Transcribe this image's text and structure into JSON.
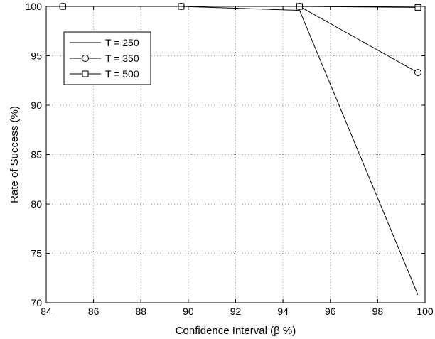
{
  "chart_data": {
    "type": "line",
    "xlabel": "Confidence Interval (β %)",
    "ylabel": "Rate of Success (%)",
    "xlim": [
      84,
      100
    ],
    "ylim": [
      70,
      100
    ],
    "xticks": [
      84,
      86,
      88,
      90,
      92,
      94,
      96,
      98,
      100
    ],
    "yticks": [
      70,
      75,
      80,
      85,
      90,
      95,
      100
    ],
    "x_tick_labels": [
      "84",
      "86",
      "88",
      "90",
      "92",
      "94",
      "96",
      "98",
      "100"
    ],
    "y_tick_labels": [
      "70",
      "75",
      "80",
      "85",
      "90",
      "95",
      "100"
    ],
    "grid": true,
    "grid_style": "dotted",
    "legend_position": "upper-left",
    "series": [
      {
        "name": "T = 250",
        "marker": "none",
        "x": [
          84.7,
          89.7,
          94.7,
          99.7
        ],
        "values": [
          100,
          100,
          99.6,
          70.8
        ]
      },
      {
        "name": "T = 350",
        "marker": "circle",
        "x": [
          84.7,
          89.7,
          94.7,
          99.7
        ],
        "values": [
          100,
          100,
          100,
          93.3
        ]
      },
      {
        "name": "T = 500",
        "marker": "square",
        "x": [
          84.7,
          89.7,
          94.7,
          99.7
        ],
        "values": [
          100,
          100,
          100,
          99.9
        ]
      }
    ],
    "colors": {
      "line": "#000000",
      "grid": "#888888",
      "background": "#ffffff"
    }
  }
}
